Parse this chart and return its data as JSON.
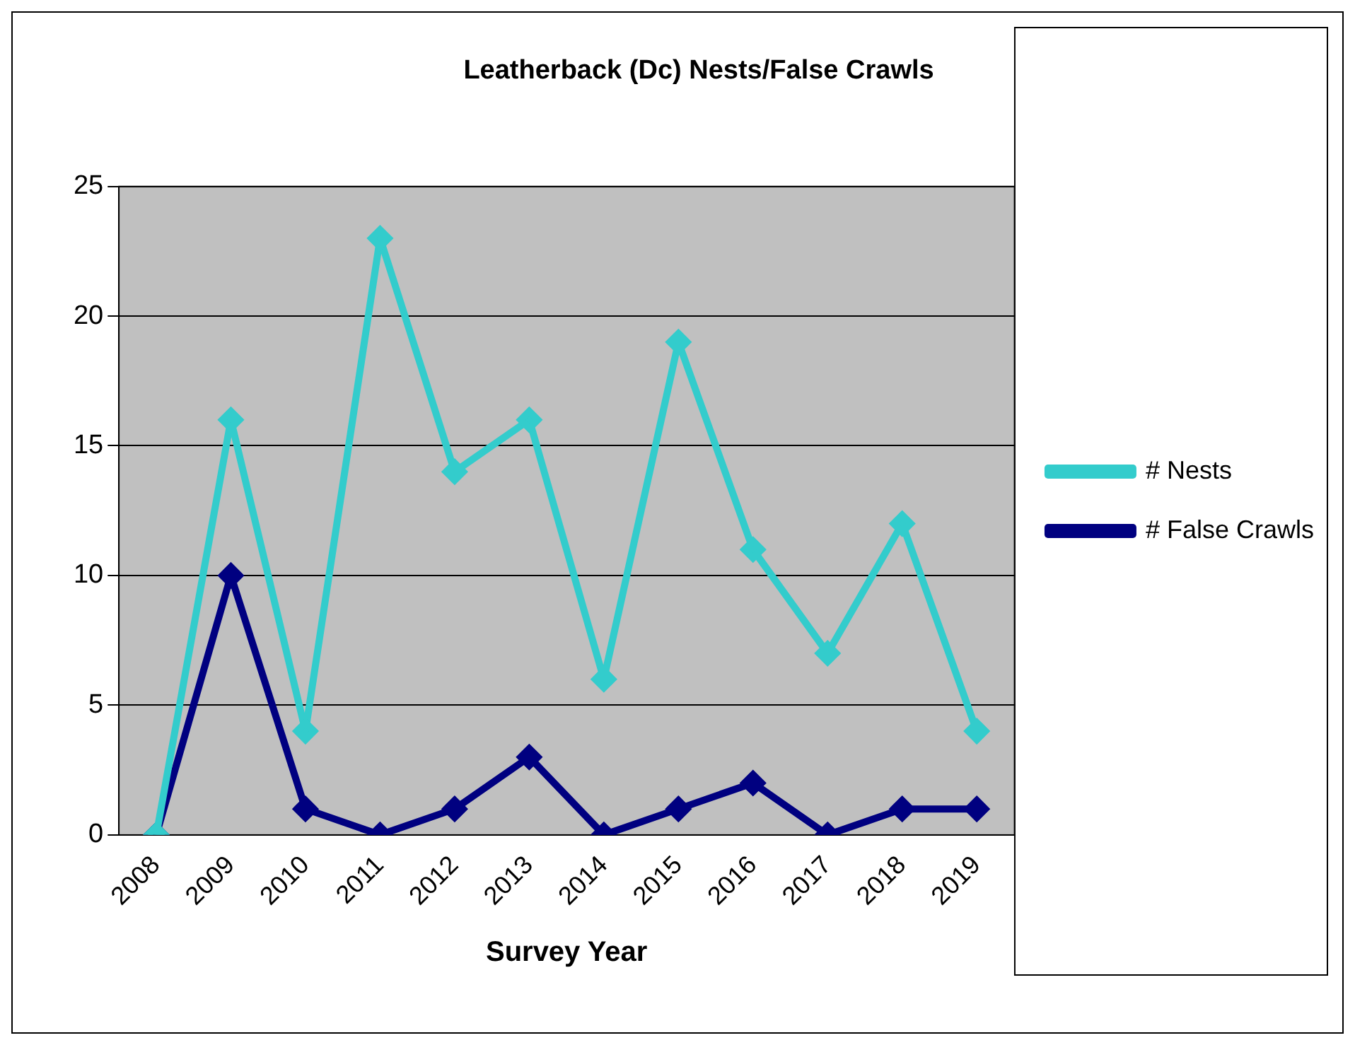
{
  "chart_data": {
    "type": "line",
    "title": "Leatherback (Dc) Nests/False Crawls",
    "xlabel": "Survey Year",
    "categories": [
      "2008",
      "2009",
      "2010",
      "2011",
      "2012",
      "2013",
      "2014",
      "2015",
      "2016",
      "2017",
      "2018",
      "2019"
    ],
    "series": [
      {
        "name": "# Nests",
        "color": "#33cccc",
        "values": [
          0,
          16,
          4,
          23,
          14,
          16,
          6,
          19,
          11,
          7,
          12,
          4
        ]
      },
      {
        "name": "# False Crawls",
        "color": "#000080",
        "values": [
          0,
          10,
          1,
          0,
          1,
          3,
          0,
          1,
          2,
          0,
          1,
          1
        ]
      }
    ],
    "ylim": [
      0,
      25
    ],
    "yticks": [
      0,
      5,
      10,
      15,
      20,
      25
    ],
    "grid": "y",
    "legend": "right",
    "marker": "diamond",
    "line_style": "solid"
  }
}
